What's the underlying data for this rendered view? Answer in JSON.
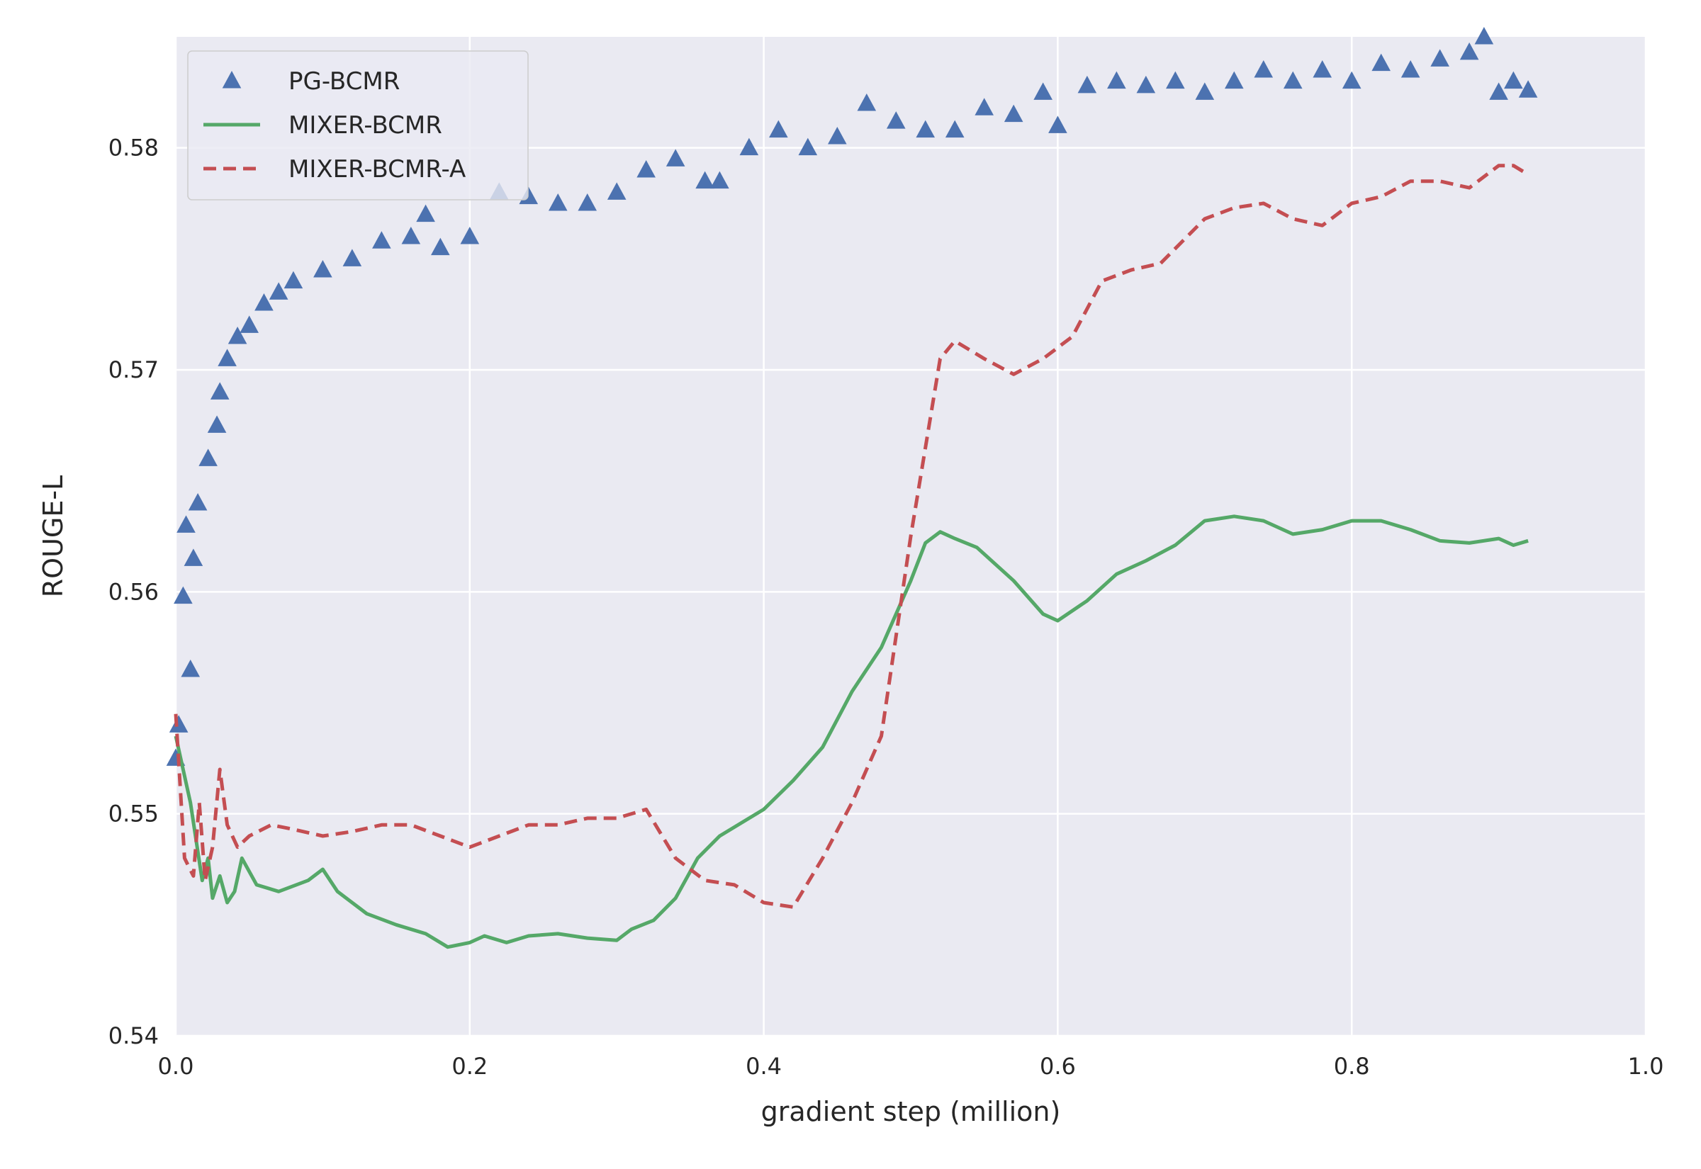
{
  "chart_data": {
    "type": "line",
    "title": "",
    "xlabel": "gradient step (million)",
    "ylabel": "ROUGE-L",
    "xlim": [
      0.0,
      1.0
    ],
    "ylim": [
      0.54,
      0.585
    ],
    "xticks": [
      0.0,
      0.2,
      0.4,
      0.6,
      0.8,
      1.0
    ],
    "xtick_labels": [
      "0.0",
      "0.2",
      "0.4",
      "0.6",
      "0.8",
      "1.0"
    ],
    "yticks": [
      0.54,
      0.55,
      0.56,
      0.57,
      0.58
    ],
    "ytick_labels": [
      "0.54",
      "0.55",
      "0.56",
      "0.57",
      "0.58"
    ],
    "grid": true,
    "legend_position": "top-left",
    "series": [
      {
        "name": "PG-BCMR",
        "style": "triangle-markers",
        "color": "#4c72b0",
        "x": [
          0.0,
          0.002,
          0.005,
          0.007,
          0.01,
          0.012,
          0.015,
          0.022,
          0.028,
          0.03,
          0.035,
          0.042,
          0.05,
          0.06,
          0.07,
          0.08,
          0.1,
          0.12,
          0.14,
          0.16,
          0.17,
          0.18,
          0.2,
          0.22,
          0.24,
          0.26,
          0.28,
          0.3,
          0.32,
          0.34,
          0.36,
          0.37,
          0.39,
          0.41,
          0.43,
          0.45,
          0.47,
          0.49,
          0.51,
          0.53,
          0.55,
          0.57,
          0.59,
          0.6,
          0.62,
          0.64,
          0.66,
          0.68,
          0.7,
          0.72,
          0.74,
          0.76,
          0.78,
          0.8,
          0.82,
          0.84,
          0.86,
          0.88,
          0.89,
          0.9,
          0.91,
          0.92
        ],
        "y": [
          0.5525,
          0.554,
          0.5598,
          0.563,
          0.5565,
          0.5615,
          0.564,
          0.566,
          0.5675,
          0.569,
          0.5705,
          0.5715,
          0.572,
          0.573,
          0.5735,
          0.574,
          0.5745,
          0.575,
          0.5758,
          0.576,
          0.577,
          0.5755,
          0.576,
          0.578,
          0.5778,
          0.5775,
          0.5775,
          0.578,
          0.579,
          0.5795,
          0.5785,
          0.5785,
          0.58,
          0.5808,
          0.58,
          0.5805,
          0.582,
          0.5812,
          0.5808,
          0.5808,
          0.5818,
          0.5815,
          0.5825,
          0.581,
          0.5828,
          0.583,
          0.5828,
          0.583,
          0.5825,
          0.583,
          0.5835,
          0.583,
          0.5835,
          0.583,
          0.5838,
          0.5835,
          0.584,
          0.5843,
          0.585,
          0.5825,
          0.583,
          0.5826
        ]
      },
      {
        "name": "MIXER-BCMR",
        "style": "solid",
        "color": "#55a868",
        "x": [
          0.0,
          0.01,
          0.018,
          0.022,
          0.025,
          0.03,
          0.035,
          0.04,
          0.045,
          0.055,
          0.07,
          0.09,
          0.1,
          0.11,
          0.13,
          0.15,
          0.17,
          0.185,
          0.2,
          0.21,
          0.225,
          0.24,
          0.26,
          0.28,
          0.3,
          0.31,
          0.325,
          0.34,
          0.355,
          0.37,
          0.39,
          0.4,
          0.42,
          0.44,
          0.46,
          0.48,
          0.5,
          0.51,
          0.52,
          0.53,
          0.545,
          0.57,
          0.59,
          0.6,
          0.62,
          0.64,
          0.66,
          0.68,
          0.7,
          0.72,
          0.74,
          0.76,
          0.78,
          0.8,
          0.82,
          0.84,
          0.86,
          0.88,
          0.9,
          0.91,
          0.92
        ],
        "y": [
          0.5535,
          0.5505,
          0.547,
          0.548,
          0.5462,
          0.5472,
          0.546,
          0.5465,
          0.548,
          0.5468,
          0.5465,
          0.547,
          0.5475,
          0.5465,
          0.5455,
          0.545,
          0.5446,
          0.544,
          0.5442,
          0.5445,
          0.5442,
          0.5445,
          0.5446,
          0.5444,
          0.5443,
          0.5448,
          0.5452,
          0.5462,
          0.548,
          0.549,
          0.5498,
          0.5502,
          0.5515,
          0.553,
          0.5555,
          0.5575,
          0.5605,
          0.5622,
          0.5627,
          0.5624,
          0.562,
          0.5605,
          0.559,
          0.5587,
          0.5596,
          0.5608,
          0.5614,
          0.5621,
          0.5632,
          0.5634,
          0.5632,
          0.5626,
          0.5628,
          0.5632,
          0.5632,
          0.5628,
          0.5623,
          0.5622,
          0.5624,
          0.5621,
          0.5623
        ]
      },
      {
        "name": "MIXER-BCMR-A",
        "style": "dashed",
        "color": "#c44e52",
        "x": [
          0.0,
          0.006,
          0.012,
          0.016,
          0.02,
          0.025,
          0.03,
          0.035,
          0.042,
          0.05,
          0.065,
          0.08,
          0.1,
          0.12,
          0.14,
          0.16,
          0.18,
          0.2,
          0.22,
          0.24,
          0.26,
          0.28,
          0.3,
          0.32,
          0.34,
          0.36,
          0.38,
          0.4,
          0.42,
          0.44,
          0.46,
          0.48,
          0.5,
          0.52,
          0.53,
          0.55,
          0.57,
          0.59,
          0.61,
          0.63,
          0.65,
          0.67,
          0.7,
          0.72,
          0.74,
          0.76,
          0.78,
          0.8,
          0.82,
          0.84,
          0.86,
          0.88,
          0.9,
          0.91,
          0.92
        ],
        "y": [
          0.5545,
          0.548,
          0.5472,
          0.5505,
          0.547,
          0.5485,
          0.552,
          0.5495,
          0.5485,
          0.549,
          0.5495,
          0.5493,
          0.549,
          0.5492,
          0.5495,
          0.5495,
          0.549,
          0.5485,
          0.549,
          0.5495,
          0.5495,
          0.5498,
          0.5498,
          0.5502,
          0.548,
          0.547,
          0.5468,
          0.546,
          0.5458,
          0.548,
          0.5505,
          0.5535,
          0.5625,
          0.5705,
          0.5713,
          0.5705,
          0.5698,
          0.5705,
          0.5715,
          0.574,
          0.5745,
          0.5748,
          0.5768,
          0.5773,
          0.5775,
          0.5768,
          0.5765,
          0.5775,
          0.5778,
          0.5785,
          0.5785,
          0.5782,
          0.5792,
          0.5792,
          0.5788
        ]
      }
    ]
  }
}
